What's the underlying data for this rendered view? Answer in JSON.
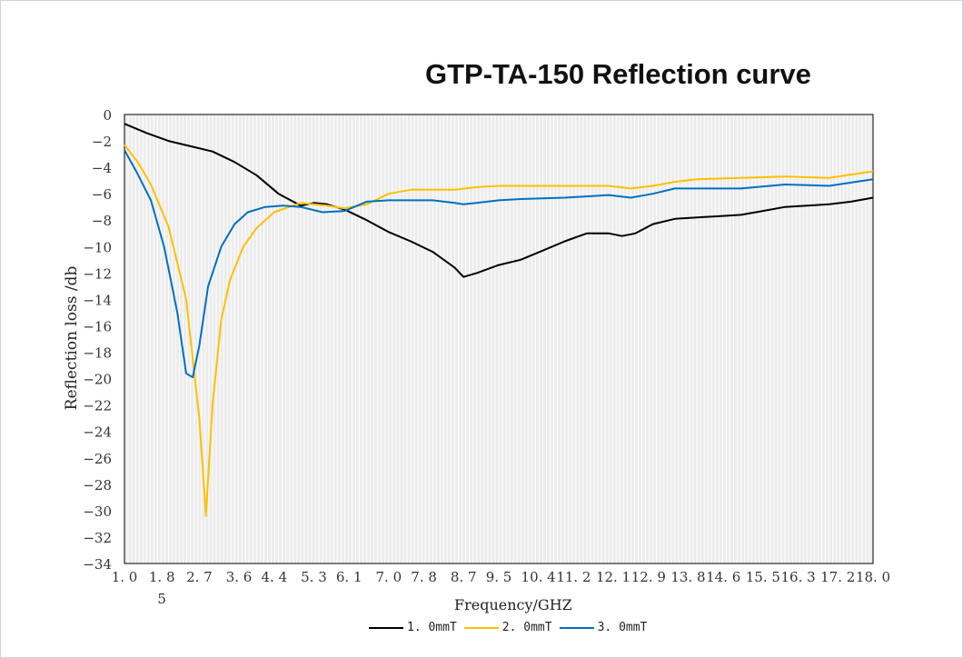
{
  "chart_data": {
    "type": "line",
    "title": "GTP-TA-150 Reflection curve",
    "xlabel": "Frequency/GHZ",
    "ylabel": "Reflection loss /db",
    "xlim": [
      1.0,
      18.0
    ],
    "ylim": [
      -34,
      0
    ],
    "grid": "vertical minor lines, light gray background",
    "legend_position": "bottom-center",
    "y_ticks": [
      "0",
      "−2",
      "−4",
      "−6",
      "−8",
      "−10",
      "−12",
      "−14",
      "−16",
      "−18",
      "−20",
      "−22",
      "−24",
      "−26",
      "−28",
      "−30",
      "−32",
      "−34"
    ],
    "x_ticks": [
      {
        "label": "1. 0",
        "x": 1.0
      },
      {
        "label": "1. 8",
        "label2": "5",
        "x": 1.85
      },
      {
        "label": "2. 7",
        "x": 2.7
      },
      {
        "label": "3. 6",
        "x": 3.6
      },
      {
        "label": "4. 4",
        "x": 4.4
      },
      {
        "label": "5. 3",
        "x": 5.3
      },
      {
        "label": "6. 1",
        "x": 6.1
      },
      {
        "label": "7. 0",
        "x": 7.0
      },
      {
        "label": "7. 8",
        "x": 7.8
      },
      {
        "label": "8. 7",
        "x": 8.7
      },
      {
        "label": "9. 5",
        "x": 9.5
      },
      {
        "label": "10. 4",
        "x": 10.4
      },
      {
        "label": "11. 2",
        "x": 11.2
      },
      {
        "label": "12. 1",
        "x": 12.1
      },
      {
        "label": "12. 9",
        "x": 12.9
      },
      {
        "label": "13. 8",
        "x": 13.8
      },
      {
        "label": "14. 6",
        "x": 14.6
      },
      {
        "label": "15. 5",
        "x": 15.5
      },
      {
        "label": "16. 3",
        "x": 16.3
      },
      {
        "label": "17. 2",
        "x": 17.2
      },
      {
        "label": "18. 0",
        "x": 18.0
      }
    ],
    "series": [
      {
        "name": "1. 0mmT",
        "color": "#000000",
        "x": [
          1.0,
          1.5,
          2.0,
          2.5,
          3.0,
          3.5,
          4.0,
          4.5,
          5.0,
          5.3,
          5.6,
          6.0,
          6.5,
          7.0,
          7.5,
          8.0,
          8.5,
          8.7,
          9.0,
          9.5,
          10.0,
          10.5,
          11.0,
          11.5,
          12.0,
          12.3,
          12.6,
          13.0,
          13.5,
          14.0,
          14.5,
          15.0,
          15.5,
          16.0,
          16.5,
          17.0,
          17.5,
          18.0
        ],
        "y": [
          -0.7,
          -1.4,
          -2.0,
          -2.4,
          -2.8,
          -3.6,
          -4.6,
          -6.0,
          -6.9,
          -6.7,
          -6.8,
          -7.2,
          -8.0,
          -8.9,
          -9.6,
          -10.4,
          -11.6,
          -12.3,
          -12.0,
          -11.4,
          -11.0,
          -10.3,
          -9.6,
          -9.0,
          -9.0,
          -9.2,
          -9.0,
          -8.3,
          -7.9,
          -7.8,
          -7.7,
          -7.6,
          -7.3,
          -7.0,
          -6.9,
          -6.8,
          -6.6,
          -6.3
        ]
      },
      {
        "name": "2. 0mmT",
        "color": "#FFC000",
        "x": [
          1.0,
          1.3,
          1.6,
          2.0,
          2.4,
          2.7,
          2.85,
          3.0,
          3.2,
          3.4,
          3.7,
          4.0,
          4.4,
          5.0,
          5.3,
          5.6,
          6.0,
          6.5,
          7.0,
          7.5,
          8.0,
          8.5,
          9.0,
          9.5,
          10.0,
          11.0,
          12.0,
          12.5,
          13.0,
          13.5,
          14.0,
          15.0,
          16.0,
          17.0,
          18.0
        ],
        "y": [
          -2.3,
          -3.6,
          -5.3,
          -8.5,
          -14.0,
          -23.0,
          -30.4,
          -22.0,
          -15.5,
          -12.5,
          -10.0,
          -8.6,
          -7.4,
          -6.7,
          -6.8,
          -6.9,
          -7.1,
          -6.8,
          -6.0,
          -5.7,
          -5.7,
          -5.7,
          -5.5,
          -5.4,
          -5.4,
          -5.4,
          -5.4,
          -5.6,
          -5.4,
          -5.1,
          -4.9,
          -4.8,
          -4.7,
          -4.8,
          -4.3
        ]
      },
      {
        "name": "3. 0mmT",
        "color": "#0070C0",
        "x": [
          1.0,
          1.3,
          1.6,
          1.9,
          2.2,
          2.4,
          2.55,
          2.7,
          2.9,
          3.2,
          3.5,
          3.8,
          4.2,
          4.6,
          5.0,
          5.5,
          6.0,
          6.5,
          7.0,
          7.5,
          8.0,
          8.5,
          8.7,
          9.0,
          9.5,
          10.0,
          11.0,
          12.0,
          12.5,
          13.0,
          13.5,
          14.0,
          15.0,
          16.0,
          17.0,
          18.0
        ],
        "y": [
          -2.7,
          -4.5,
          -6.5,
          -10.0,
          -15.0,
          -19.6,
          -19.9,
          -17.5,
          -13.0,
          -10.0,
          -8.3,
          -7.4,
          -7.0,
          -6.9,
          -7.0,
          -7.4,
          -7.3,
          -6.6,
          -6.5,
          -6.5,
          -6.5,
          -6.7,
          -6.8,
          -6.7,
          -6.5,
          -6.4,
          -6.3,
          -6.1,
          -6.3,
          -6.0,
          -5.6,
          -5.6,
          -5.6,
          -5.3,
          -5.4,
          -4.9
        ]
      }
    ]
  }
}
